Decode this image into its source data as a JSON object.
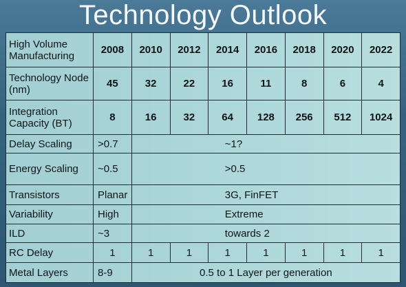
{
  "title": "Technology Outlook",
  "table": {
    "header": [
      "High Volume Manufacturing",
      "2008",
      "2010",
      "2012",
      "2014",
      "2016",
      "2018",
      "2020",
      "2022"
    ],
    "rows": [
      [
        "Technology Node (nm)",
        45,
        32,
        22,
        16,
        11,
        8,
        6,
        4
      ],
      [
        "Integration Capacity (BT)",
        8,
        16,
        32,
        64,
        128,
        256,
        512,
        1024
      ],
      [
        "Delay Scaling",
        ">0.7",
        "~1?"
      ],
      [
        "Energy Scaling",
        "~0.5",
        ">0.5"
      ],
      [
        "Transistors",
        "Planar",
        "3G, FinFET"
      ],
      [
        "Variability",
        "High",
        "Extreme"
      ],
      [
        "ILD",
        "~3",
        "towards 2"
      ],
      [
        "RC Delay",
        1,
        1,
        1,
        1,
        1,
        1,
        1,
        1
      ],
      [
        "Metal Layers",
        "8-9",
        "0.5 to 1 Layer per generation"
      ]
    ]
  }
}
